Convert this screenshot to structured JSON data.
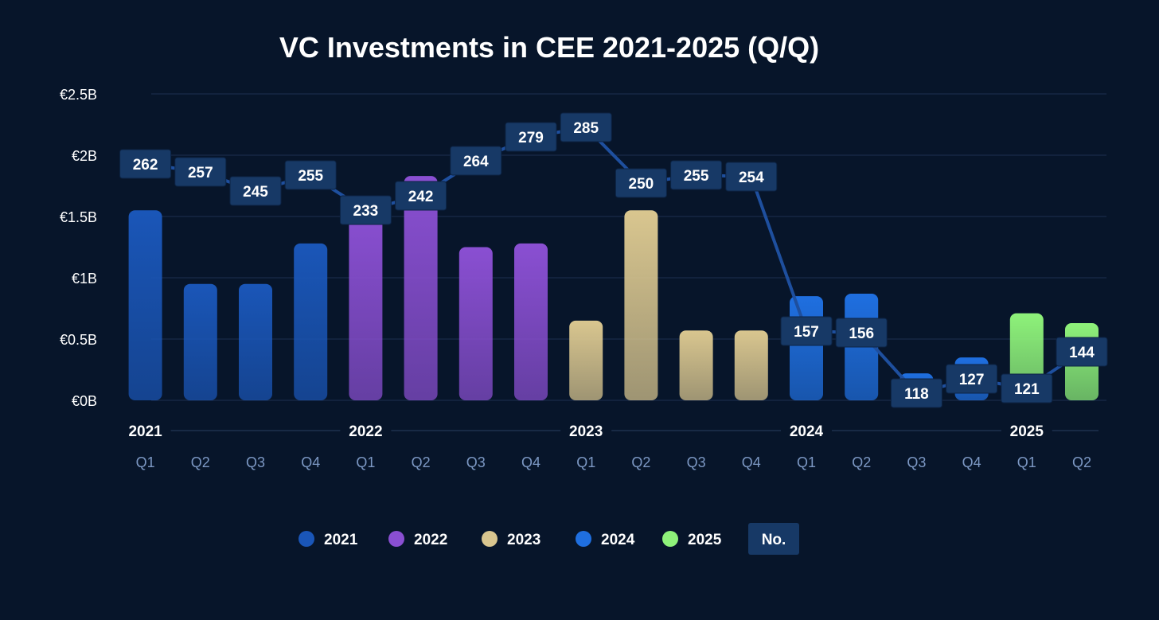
{
  "chart_data": {
    "type": "bar",
    "title": "VC Investments in CEE 2021-2025 (Q/Q)",
    "xlabel": "",
    "ylabel": "",
    "ylim": [
      0,
      2.5
    ],
    "y_ticks": [
      {
        "value": 0,
        "label": "€0B"
      },
      {
        "value": 0.5,
        "label": "€0.5B"
      },
      {
        "value": 1,
        "label": "€1B"
      },
      {
        "value": 1.5,
        "label": "€1.5B"
      },
      {
        "value": 2,
        "label": "€2B"
      },
      {
        "value": 2.5,
        "label": "€2.5B"
      }
    ],
    "grid": true,
    "years": [
      {
        "label": "2021",
        "color": "#1a56b8"
      },
      {
        "label": "2022",
        "color": "#8a4fd2"
      },
      {
        "label": "2023",
        "color": "#d9c68f"
      },
      {
        "label": "2024",
        "color": "#1f6fe0"
      },
      {
        "label": "2025",
        "color": "#8ef27a"
      }
    ],
    "categories": [
      "Q1",
      "Q2",
      "Q3",
      "Q4",
      "Q1",
      "Q2",
      "Q3",
      "Q4",
      "Q1",
      "Q2",
      "Q3",
      "Q4",
      "Q1",
      "Q2",
      "Q3",
      "Q4",
      "Q1",
      "Q2"
    ],
    "category_years": [
      0,
      0,
      0,
      0,
      1,
      1,
      1,
      1,
      2,
      2,
      2,
      2,
      3,
      3,
      3,
      3,
      4,
      4
    ],
    "series": [
      {
        "name": "",
        "type": "bar",
        "values": [
          1.55,
          0.95,
          0.95,
          1.28,
          1.55,
          1.83,
          1.25,
          1.28,
          0.65,
          1.55,
          0.57,
          0.57,
          0.85,
          0.87,
          0.22,
          0.35,
          0.71,
          0.63
        ]
      },
      {
        "name": "No.",
        "type": "line",
        "color": "#1e4f9e",
        "values": [
          262,
          257,
          245,
          255,
          233,
          242,
          264,
          279,
          285,
          250,
          255,
          254,
          157,
          156,
          118,
          127,
          121,
          144
        ]
      }
    ],
    "legend": {
      "placement": "bottom-center",
      "entries": [
        "2021",
        "2022",
        "2023",
        "2024",
        "2025"
      ],
      "count_label": "No."
    }
  }
}
